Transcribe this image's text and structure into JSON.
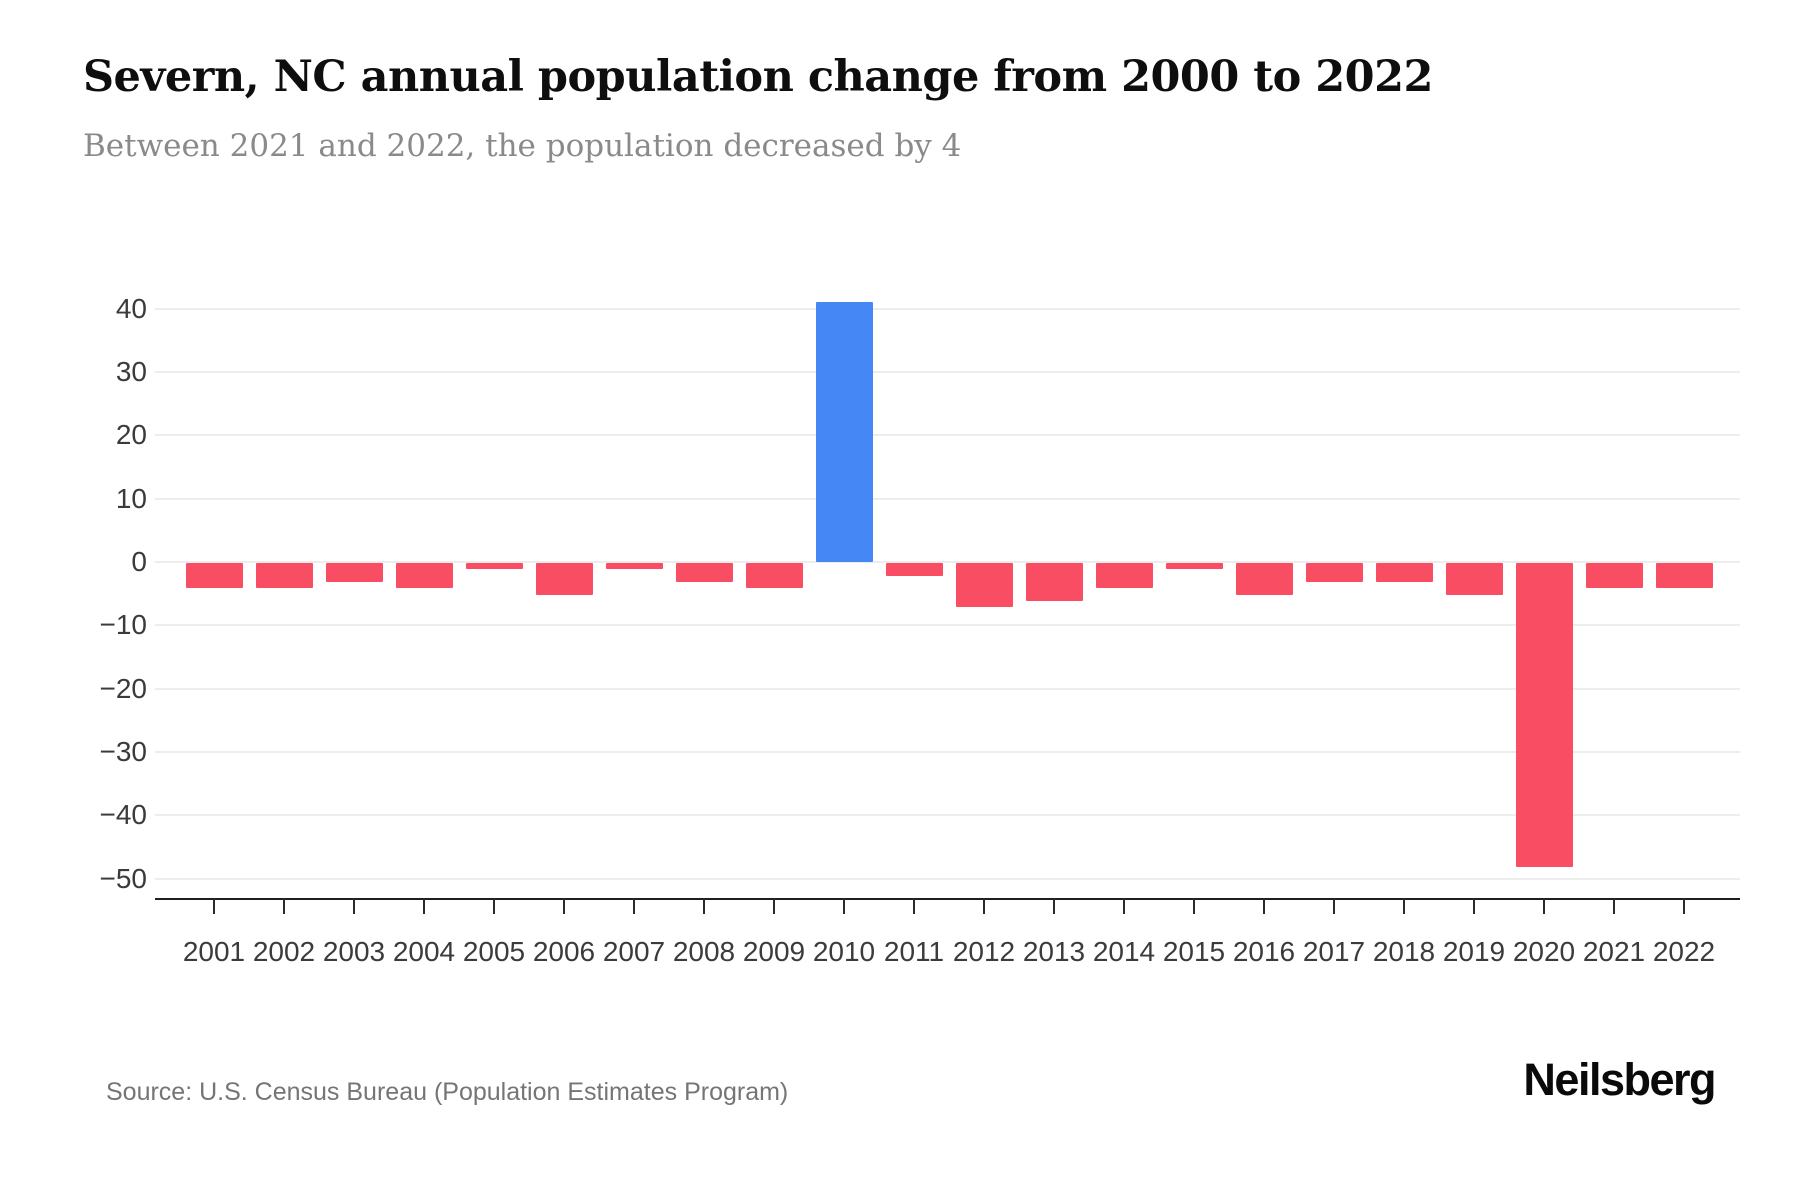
{
  "header": {
    "title": "Severn, NC annual population change from 2000 to 2022",
    "subtitle": "Between 2021 and 2022, the population decreased by 4"
  },
  "footer": {
    "source": "Source: U.S. Census Bureau (Population Estimates Program)",
    "logo": "Neilsberg"
  },
  "chart_data": {
    "type": "bar",
    "title": "Severn, NC annual population change from 2000 to 2022",
    "subtitle": "Between 2021 and 2022, the population decreased by 4",
    "categories": [
      "2001",
      "2002",
      "2003",
      "2004",
      "2005",
      "2006",
      "2007",
      "2008",
      "2009",
      "2010",
      "2011",
      "2012",
      "2013",
      "2014",
      "2015",
      "2016",
      "2017",
      "2018",
      "2019",
      "2020",
      "2021",
      "2022"
    ],
    "values": [
      -4,
      -4,
      -3,
      -4,
      -1,
      -5,
      -1,
      -3,
      -4,
      41,
      -2,
      -7,
      -6,
      -4,
      -1,
      -5,
      -3,
      -3,
      -5,
      -48,
      -4,
      -4
    ],
    "xlabel": "",
    "ylabel": "",
    "ylim": [
      -50,
      40
    ],
    "yticks": [
      40,
      30,
      20,
      10,
      0,
      -10,
      -20,
      -30,
      -40,
      -50
    ],
    "grid": true,
    "legend": "none",
    "colors": {
      "positive_bar": "#4587f4",
      "negative_bar": "#f94d64",
      "gridline": "#ededed",
      "axis": "#1f1f1f",
      "tick_label": "#3b3b3b"
    }
  }
}
